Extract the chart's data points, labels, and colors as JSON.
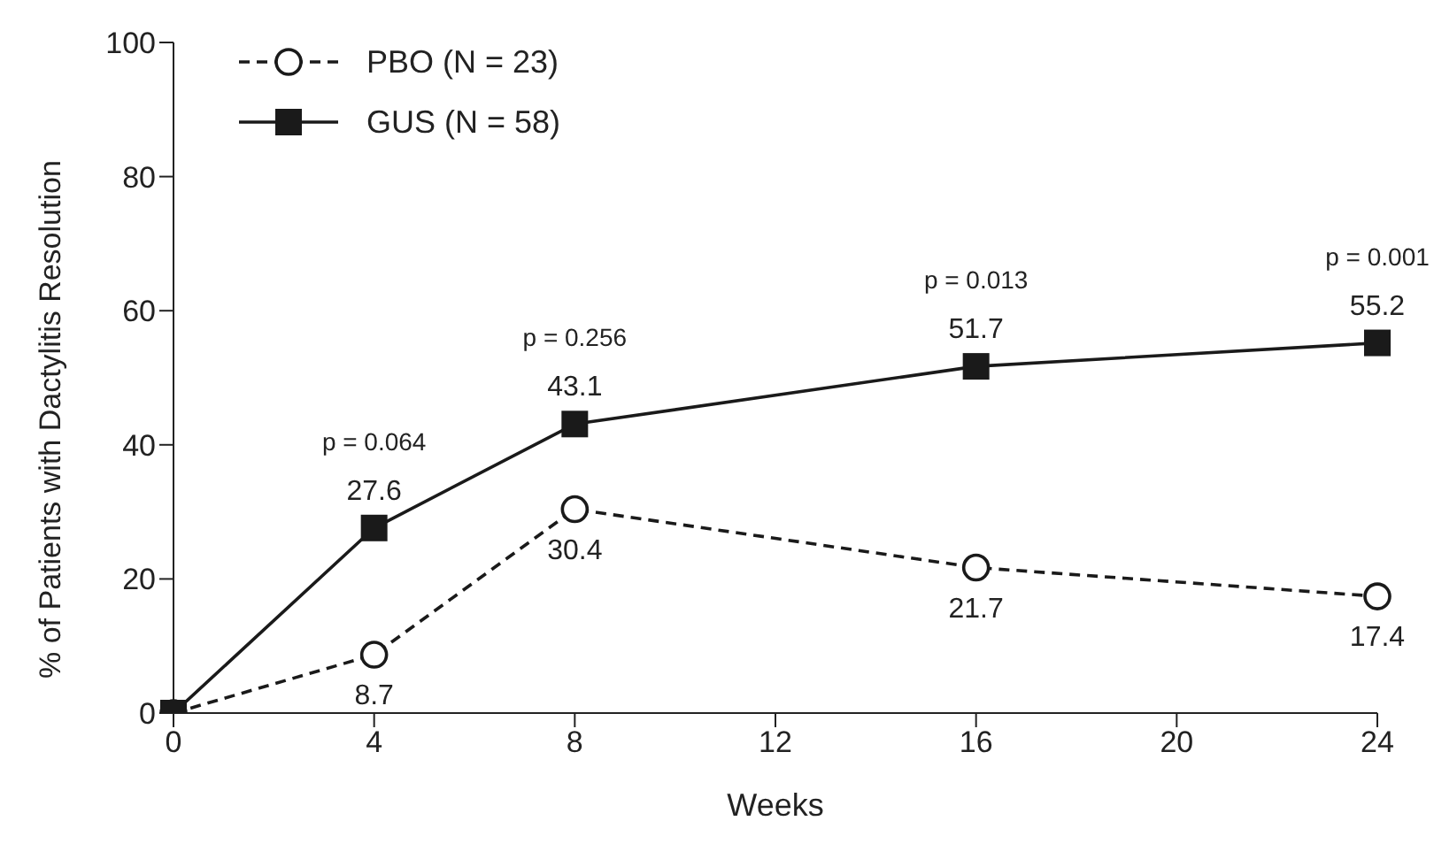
{
  "chart_data": {
    "type": "line",
    "xlabel": "Weeks",
    "ylabel": "% of Patients with Dactylitis Resolution",
    "x": [
      0,
      4,
      8,
      16,
      24
    ],
    "series": [
      {
        "name": "PBO (N = 23)",
        "color": "#1a1a1a",
        "values": [
          0,
          8.7,
          30.4,
          21.7,
          17.4
        ],
        "value_labels": [
          null,
          "8.7",
          "30.4",
          "21.7",
          "17.4"
        ],
        "marker": "circle",
        "line_style": "dashed"
      },
      {
        "name": "GUS (N = 58)",
        "color": "#1a1a1a",
        "values": [
          0,
          27.6,
          43.1,
          51.7,
          55.2
        ],
        "value_labels": [
          null,
          "27.6",
          "43.1",
          "51.7",
          "55.2"
        ],
        "marker": "square",
        "line_style": "solid"
      }
    ],
    "annotations": [
      {
        "text": "p = 0.064",
        "x": 4,
        "y": 27.6
      },
      {
        "text": "p = 0.256",
        "x": 8,
        "y": 43.1
      },
      {
        "text": "p = 0.013",
        "x": 16,
        "y": 51.7
      },
      {
        "text": "p = 0.001",
        "x": 24,
        "y": 55.2
      }
    ],
    "xlim": [
      0,
      24
    ],
    "xticks": [
      0,
      4,
      8,
      12,
      16,
      20,
      24
    ],
    "ylim": [
      0,
      100
    ],
    "yticks": [
      0,
      20,
      40,
      60,
      80,
      100
    ],
    "grid": false,
    "legend": "top left"
  }
}
